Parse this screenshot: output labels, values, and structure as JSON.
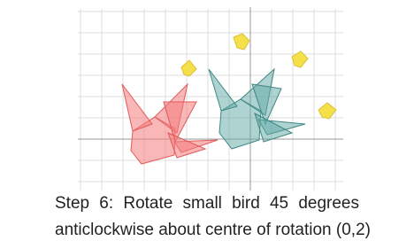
{
  "caption": {
    "lines": [
      "Step 6: Rotate small bird 45 degrees",
      "anticlockwise about centre of rotation (0,2)"
    ]
  }
}
